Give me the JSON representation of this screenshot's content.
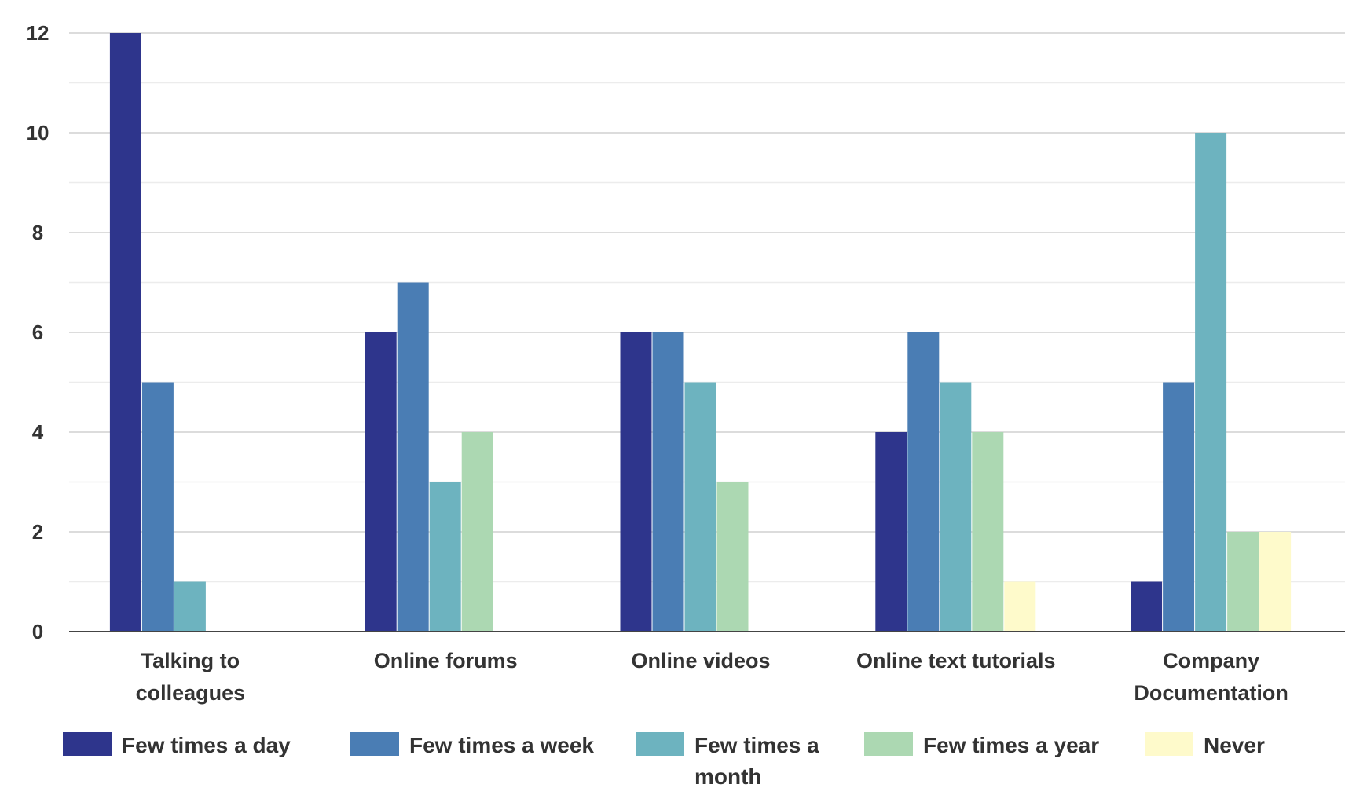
{
  "chart_data": {
    "type": "bar",
    "title": "",
    "xlabel": "",
    "ylabel": "",
    "ylim": [
      0,
      12
    ],
    "yticks": [
      "0",
      "2",
      "4",
      "6",
      "8",
      "10",
      "12"
    ],
    "grid": true,
    "legend_position": "bottom",
    "categories": [
      [
        "Talking to",
        "colleagues"
      ],
      [
        "Online forums"
      ],
      [
        "Online videos"
      ],
      [
        "Online text tutorials"
      ],
      [
        "Company",
        "Documentation"
      ]
    ],
    "series": [
      {
        "name": [
          "Few times a day"
        ],
        "color": "#2e358c",
        "values": [
          12,
          6,
          6,
          4,
          1
        ]
      },
      {
        "name": [
          "Few times a week"
        ],
        "color": "#4a7db4",
        "values": [
          5,
          7,
          6,
          6,
          5
        ]
      },
      {
        "name": [
          "Few times a",
          "month"
        ],
        "color": "#6db3bf",
        "values": [
          1,
          3,
          5,
          5,
          10
        ]
      },
      {
        "name": [
          "Few times a year"
        ],
        "color": "#acd8b2",
        "values": [
          0,
          4,
          3,
          4,
          2
        ]
      },
      {
        "name": [
          "Never"
        ],
        "color": "#fefacb",
        "values": [
          0,
          0,
          0,
          1,
          2
        ]
      }
    ]
  }
}
